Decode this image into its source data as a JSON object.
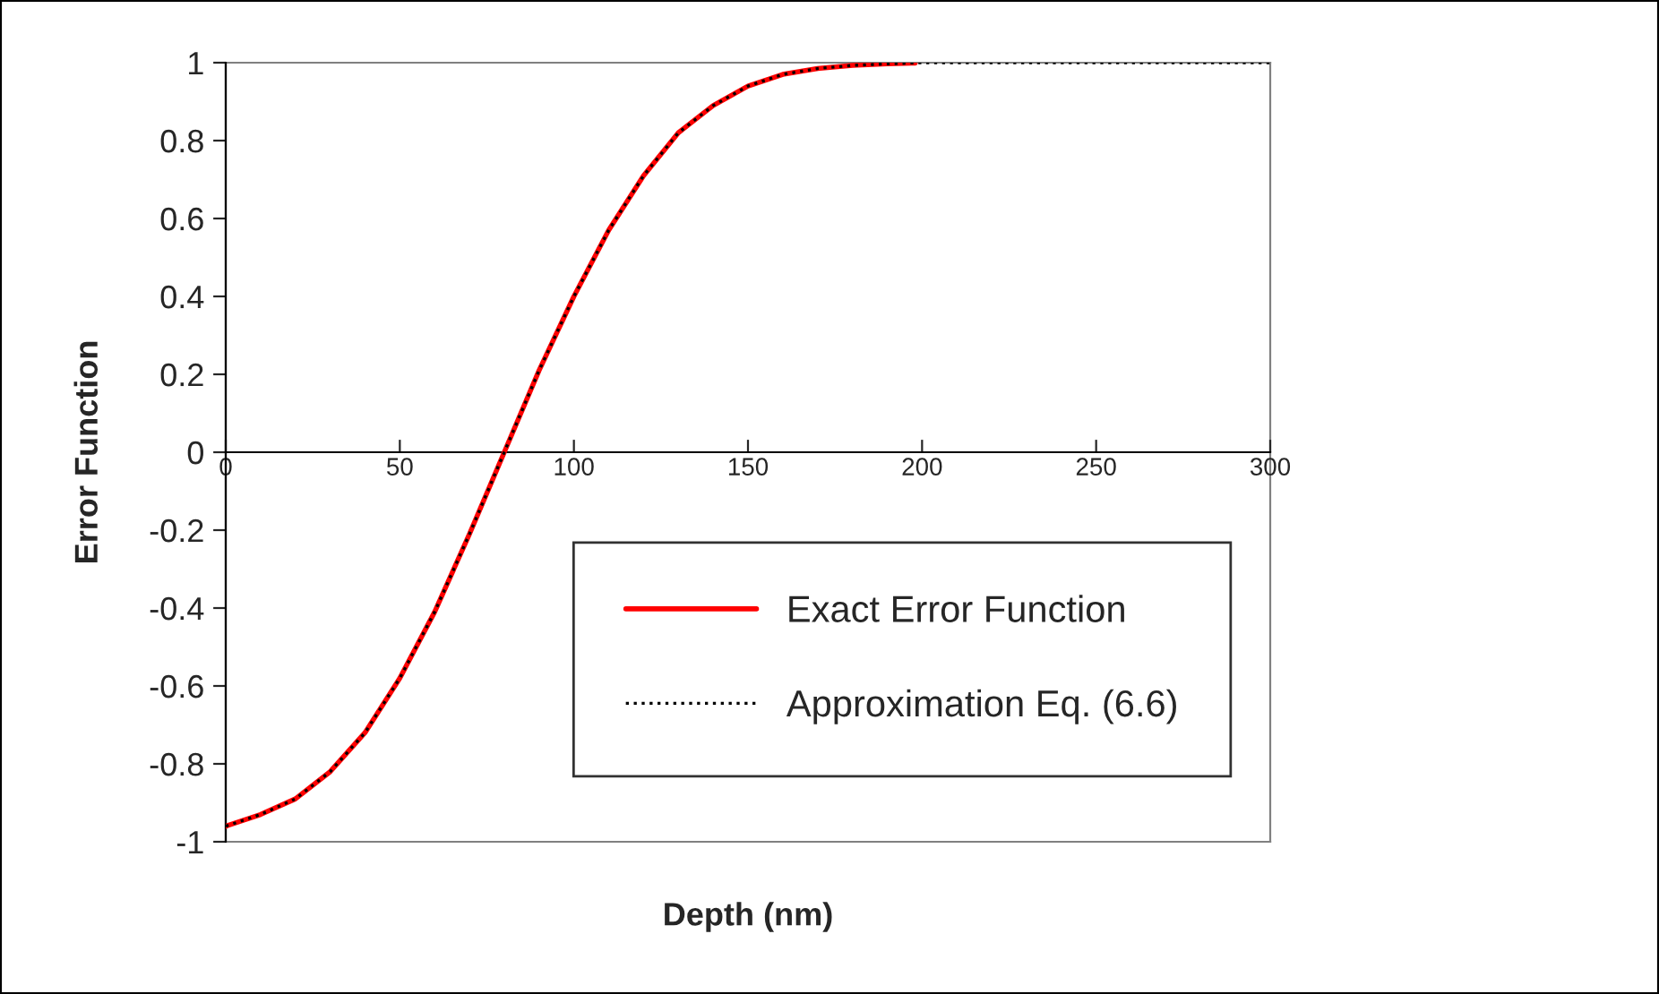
{
  "chart_data": {
    "type": "line",
    "xlabel": "Depth (nm)",
    "ylabel": "Error Function",
    "xlim": [
      0,
      300
    ],
    "xticks": [
      0,
      50,
      100,
      150,
      200,
      250,
      300
    ],
    "ylim": [
      -1,
      1
    ],
    "yticks": [
      -1,
      -0.8,
      -0.6,
      -0.4,
      -0.2,
      0,
      0.2,
      0.4,
      0.6,
      0.8,
      1
    ],
    "grid": false,
    "legend": "bottom right",
    "marker": "none",
    "series": [
      {
        "name": "Exact Error Function",
        "color": "#ff0000",
        "line_style": "solid",
        "x": [
          0,
          10,
          20,
          30,
          40,
          50,
          60,
          70,
          80,
          90,
          100,
          110,
          120,
          130,
          140,
          150,
          160,
          170,
          180,
          190,
          198
        ],
        "values": [
          -0.96,
          -0.93,
          -0.89,
          -0.82,
          -0.72,
          -0.58,
          -0.41,
          -0.21,
          0.0,
          0.21,
          0.4,
          0.57,
          0.71,
          0.82,
          0.89,
          0.94,
          0.97,
          0.985,
          0.993,
          0.997,
          0.999
        ]
      },
      {
        "name": "Approximation Eq. (6.6)",
        "color": "#000000",
        "line_style": "dotted",
        "x": [
          0,
          10,
          20,
          30,
          40,
          50,
          60,
          70,
          80,
          90,
          100,
          110,
          120,
          130,
          140,
          150,
          160,
          170,
          180,
          190,
          200,
          250,
          300
        ],
        "values": [
          -0.96,
          -0.93,
          -0.89,
          -0.82,
          -0.72,
          -0.58,
          -0.41,
          -0.21,
          0.0,
          0.21,
          0.4,
          0.57,
          0.71,
          0.82,
          0.89,
          0.94,
          0.97,
          0.985,
          0.993,
          0.997,
          1,
          1,
          1
        ]
      }
    ]
  }
}
